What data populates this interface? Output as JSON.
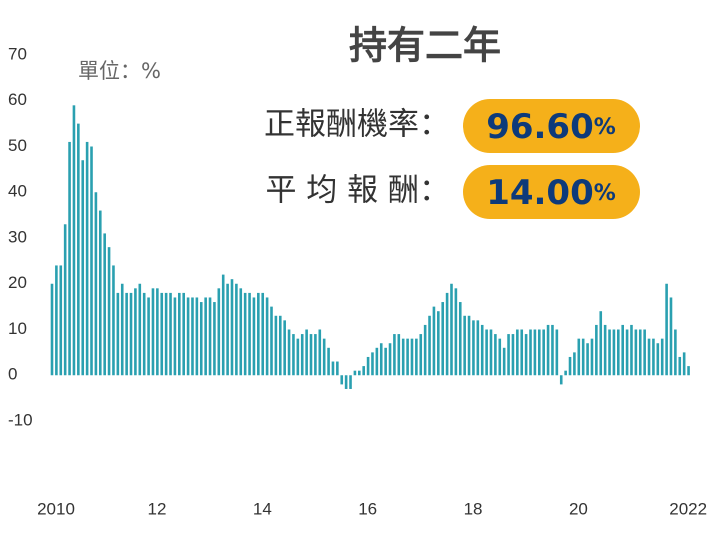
{
  "chart_data": {
    "type": "bar",
    "title": "持有二年",
    "unit_label": "單位：%",
    "annotations": [
      {
        "label": "正報酬機率：",
        "number": "96.60",
        "unit": "%"
      },
      {
        "label": "平 均 報 酬：",
        "number": "14.00",
        "unit": "%"
      }
    ],
    "color": "#2aa0b0",
    "ylim": [
      -10,
      70
    ],
    "yticks": [
      70,
      60,
      50,
      40,
      30,
      20,
      10,
      0,
      -10
    ],
    "categories": [
      "2010",
      null,
      null,
      null,
      null,
      null,
      null,
      null,
      null,
      null,
      null,
      null,
      null,
      null,
      null,
      null,
      null,
      null,
      null,
      null,
      null,
      null,
      null,
      "12",
      null,
      null,
      null,
      null,
      null,
      null,
      null,
      null,
      null,
      null,
      null,
      null,
      null,
      null,
      null,
      null,
      null,
      null,
      null,
      null,
      null,
      null,
      null,
      "14",
      null,
      null,
      null,
      null,
      null,
      null,
      null,
      null,
      null,
      null,
      null,
      null,
      null,
      null,
      null,
      null,
      null,
      null,
      null,
      null,
      null,
      null,
      null,
      "16",
      null,
      null,
      null,
      null,
      null,
      null,
      null,
      null,
      null,
      null,
      null,
      null,
      null,
      null,
      null,
      null,
      null,
      null,
      null,
      null,
      null,
      null,
      null,
      "18",
      null,
      null,
      null,
      null,
      null,
      null,
      null,
      null,
      null,
      null,
      null,
      null,
      null,
      null,
      null,
      null,
      null,
      null,
      null,
      null,
      null,
      null,
      null,
      "20",
      null,
      null,
      null,
      null,
      null,
      null,
      null,
      null,
      null,
      null,
      null,
      null,
      null,
      null,
      null,
      null,
      null,
      null,
      null,
      null,
      null,
      null,
      null,
      null,
      "2022",
      null
    ],
    "values": [
      20,
      24,
      24,
      33,
      51,
      59,
      55,
      47,
      51,
      50,
      40,
      36,
      31,
      28,
      24,
      18,
      20,
      18,
      18,
      19,
      20,
      18,
      17,
      19,
      19,
      18,
      18,
      18,
      17,
      18,
      18,
      17,
      17,
      17,
      16,
      17,
      17,
      16,
      19,
      22,
      20,
      21,
      20,
      19,
      18,
      18,
      17,
      18,
      18,
      17,
      15,
      13,
      13,
      12,
      10,
      9,
      8,
      9,
      10,
      9,
      9,
      10,
      8,
      6,
      3,
      3,
      -2,
      -3,
      -3,
      1,
      1,
      2,
      4,
      5,
      6,
      7,
      6,
      7,
      9,
      9,
      8,
      8,
      8,
      8,
      9,
      11,
      13,
      15,
      14,
      16,
      18,
      20,
      19,
      16,
      13,
      13,
      12,
      12,
      11,
      10,
      10,
      9,
      8,
      6,
      9,
      9,
      10,
      10,
      9,
      10,
      10,
      10,
      10,
      11,
      11,
      10,
      -2,
      1,
      4,
      5,
      8,
      8,
      7,
      8,
      11,
      14,
      11,
      10,
      10,
      10,
      11,
      10,
      11,
      10,
      10,
      10,
      8,
      8,
      7,
      8,
      20,
      17,
      10,
      4,
      5,
      2
    ]
  }
}
